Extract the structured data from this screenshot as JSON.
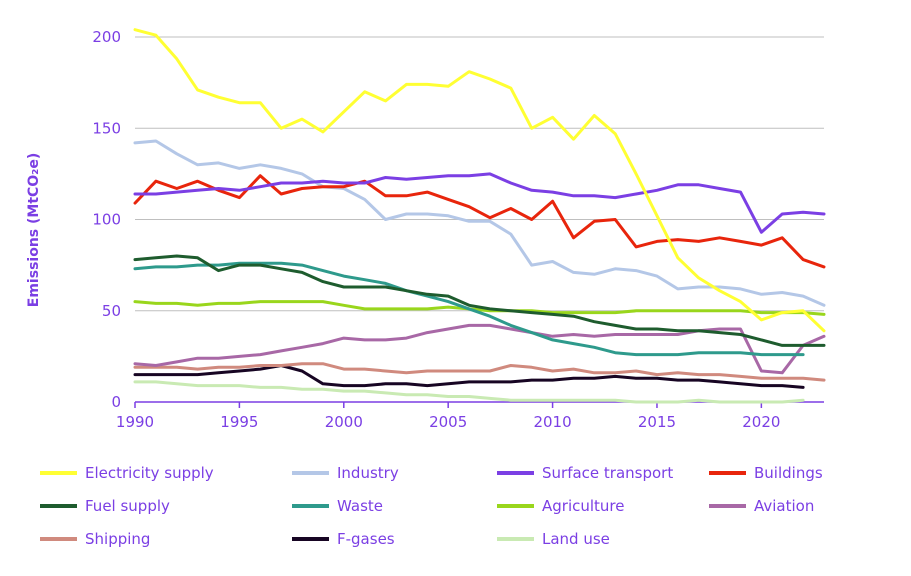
{
  "chart_data": {
    "type": "line",
    "title": "",
    "xlabel": "",
    "ylabel": "Emissions (MtCO₂e)",
    "xlim": [
      1990,
      2023
    ],
    "ylim": [
      0,
      200
    ],
    "x_ticks": [
      "1990",
      "1995",
      "2000",
      "2005",
      "2010",
      "2015",
      "2020"
    ],
    "y_ticks": [
      "0",
      "50",
      "100",
      "150",
      "200"
    ],
    "grid": "horizontal",
    "legend_position": "bottom",
    "series": [
      {
        "name": "Electricity supply",
        "color": "#ffff33",
        "x_start": 1990,
        "values": [
          204,
          201,
          188,
          171,
          167,
          164,
          164,
          150,
          155,
          148,
          159,
          170,
          165,
          174,
          174,
          173,
          181,
          177,
          172,
          150,
          156,
          144,
          157,
          147,
          125,
          102,
          79,
          68,
          61,
          55,
          45,
          49,
          50,
          39
        ]
      },
      {
        "name": "Industry",
        "color": "#b4c7e7",
        "x_start": 1990,
        "values": [
          142,
          143,
          136,
          130,
          131,
          128,
          130,
          128,
          125,
          118,
          117,
          111,
          100,
          103,
          103,
          102,
          99,
          99,
          92,
          75,
          77,
          71,
          70,
          73,
          72,
          69,
          62,
          63,
          63,
          62,
          59,
          60,
          58,
          53
        ]
      },
      {
        "name": "Surface transport",
        "color": "#7b3fe4",
        "x_start": 1990,
        "values": [
          114,
          114,
          115,
          116,
          117,
          116,
          118,
          120,
          120,
          121,
          120,
          120,
          123,
          122,
          123,
          124,
          124,
          125,
          120,
          116,
          115,
          113,
          113,
          112,
          114,
          116,
          119,
          119,
          117,
          115,
          93,
          103,
          104,
          103
        ]
      },
      {
        "name": "Buildings",
        "color": "#e8250c",
        "x_start": 1990,
        "values": [
          109,
          121,
          117,
          121,
          116,
          112,
          124,
          114,
          117,
          118,
          118,
          121,
          113,
          113,
          115,
          111,
          107,
          101,
          106,
          100,
          110,
          90,
          99,
          100,
          85,
          88,
          89,
          88,
          90,
          88,
          86,
          90,
          78,
          74
        ]
      },
      {
        "name": "Fuel supply",
        "color": "#1e5c2e",
        "x_start": 1990,
        "values": [
          78,
          79,
          80,
          79,
          72,
          75,
          75,
          73,
          71,
          66,
          63,
          63,
          63,
          61,
          59,
          58,
          53,
          51,
          50,
          49,
          48,
          47,
          44,
          42,
          40,
          40,
          39,
          39,
          38,
          37,
          34,
          31,
          31,
          31
        ]
      },
      {
        "name": "Waste",
        "color": "#2e9a8c",
        "x_start": 1990,
        "values": [
          73,
          74,
          74,
          75,
          75,
          76,
          76,
          76,
          75,
          72,
          69,
          67,
          65,
          61,
          58,
          55,
          51,
          47,
          42,
          38,
          34,
          32,
          30,
          27,
          26,
          26,
          26,
          27,
          27,
          27,
          26,
          26,
          26
        ]
      },
      {
        "name": "Agriculture",
        "color": "#99d61c",
        "x_start": 1990,
        "values": [
          55,
          54,
          54,
          53,
          54,
          54,
          55,
          55,
          55,
          55,
          53,
          51,
          51,
          51,
          51,
          52,
          51,
          50,
          50,
          50,
          49,
          49,
          49,
          49,
          50,
          50,
          50,
          50,
          50,
          50,
          49,
          49,
          49,
          48
        ]
      },
      {
        "name": "Aviation",
        "color": "#a868a6",
        "x_start": 1990,
        "values": [
          21,
          20,
          22,
          24,
          24,
          25,
          26,
          28,
          30,
          32,
          35,
          34,
          34,
          35,
          38,
          40,
          42,
          42,
          40,
          38,
          36,
          37,
          36,
          37,
          37,
          37,
          37,
          39,
          40,
          40,
          17,
          16,
          31,
          36
        ]
      },
      {
        "name": "Shipping",
        "color": "#d08a7e",
        "x_start": 1990,
        "values": [
          19,
          19,
          19,
          18,
          19,
          19,
          20,
          20,
          21,
          21,
          18,
          18,
          17,
          16,
          17,
          17,
          17,
          17,
          20,
          19,
          17,
          18,
          16,
          16,
          17,
          15,
          16,
          15,
          15,
          14,
          13,
          13,
          13,
          12
        ]
      },
      {
        "name": "F-gases",
        "color": "#170523",
        "x_start": 1990,
        "values": [
          15,
          15,
          15,
          15,
          16,
          17,
          18,
          20,
          17,
          10,
          9,
          9,
          10,
          10,
          9,
          10,
          11,
          11,
          11,
          12,
          12,
          13,
          13,
          14,
          13,
          13,
          12,
          12,
          11,
          10,
          9,
          9,
          8
        ]
      },
      {
        "name": "Land use",
        "color": "#c9eab3",
        "x_start": 1990,
        "values": [
          11,
          11,
          10,
          9,
          9,
          9,
          8,
          8,
          7,
          7,
          6,
          6,
          5,
          4,
          4,
          3,
          3,
          2,
          1,
          1,
          1,
          1,
          1,
          1,
          0,
          0,
          0,
          1,
          0,
          0,
          0,
          0,
          1
        ]
      }
    ]
  }
}
